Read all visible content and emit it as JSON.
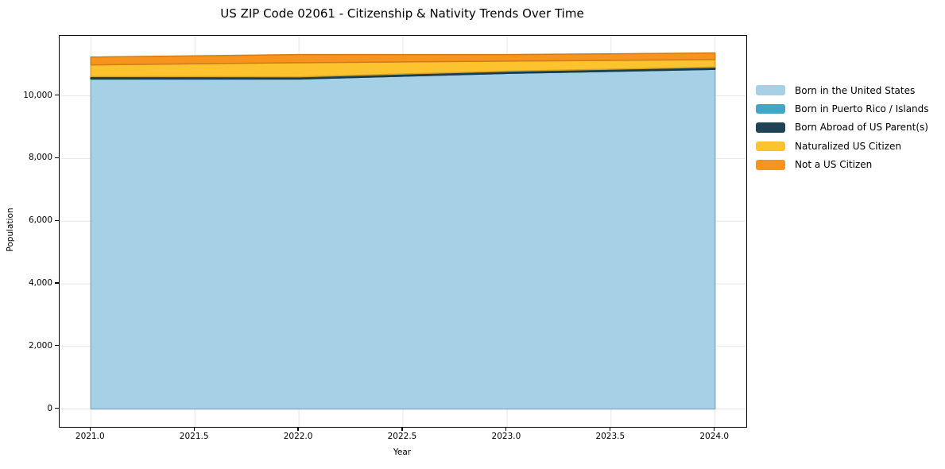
{
  "chart_data": {
    "type": "area",
    "stacked": true,
    "title": "US ZIP Code 02061 - Citizenship & Nativity Trends Over Time",
    "xlabel": "Year",
    "ylabel": "Population",
    "x": [
      2021,
      2022,
      2023,
      2024
    ],
    "series": [
      {
        "name": "Born in the United States",
        "color": "#a6d0e6",
        "values": [
          10540,
          10540,
          10720,
          10850
        ]
      },
      {
        "name": "Born in Puerto Rico / Islands",
        "color": "#41a7c6",
        "values": [
          0,
          0,
          0,
          0
        ]
      },
      {
        "name": "Born Abroad of US Parent(s)",
        "color": "#1f4356",
        "values": [
          80,
          70,
          70,
          70
        ]
      },
      {
        "name": "Naturalized US Citizen",
        "color": "#fcc32e",
        "values": [
          370,
          450,
          320,
          240
        ]
      },
      {
        "name": "Not a US Citizen",
        "color": "#f7941e",
        "values": [
          250,
          260,
          210,
          210
        ]
      }
    ],
    "xlim": [
      2020.85,
      2024.15
    ],
    "ylim": [
      -570,
      11920
    ],
    "xticks": {
      "values": [
        2021,
        2021.5,
        2022,
        2022.5,
        2023,
        2023.5,
        2024
      ],
      "labels": [
        "2021.0",
        "2021.5",
        "2022.0",
        "2022.5",
        "2023.0",
        "2023.5",
        "2024.0"
      ]
    },
    "yticks": {
      "values": [
        0,
        2000,
        4000,
        6000,
        8000,
        10000
      ],
      "labels": [
        "0",
        "2,000",
        "4,000",
        "6,000",
        "8,000",
        "10,000"
      ]
    },
    "grid": true,
    "legend_position": "right-outside"
  },
  "colors": {
    "grid": "#e7e7e7",
    "spine": "#000000",
    "background": "#ffffff",
    "text": "#000000"
  }
}
